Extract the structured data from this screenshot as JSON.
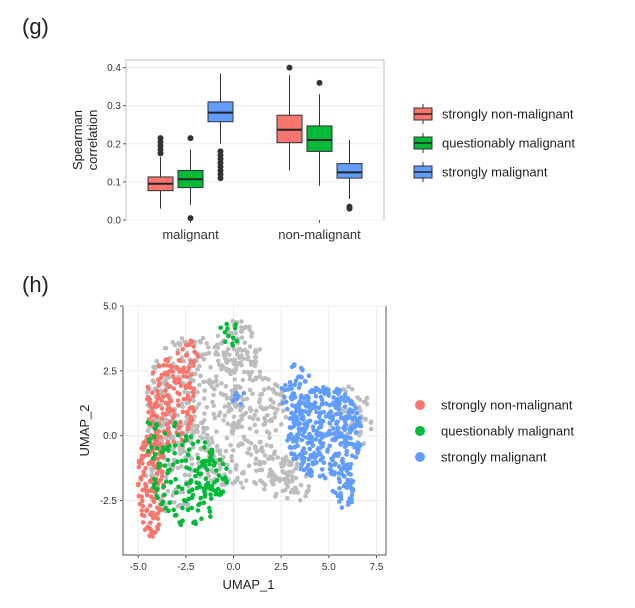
{
  "panels": {
    "g_label": "(g)",
    "h_label": "(h)"
  },
  "chart_data": [
    {
      "type": "box",
      "ylabel_line1": "Spearman",
      "ylabel_line2": "correlation",
      "ylim": [
        0,
        0.42
      ],
      "yticks": [
        0.0,
        0.1,
        0.2,
        0.3,
        0.4
      ],
      "ytick_labels": [
        "0.0",
        "0.1",
        "0.2",
        "0.3",
        "0.4"
      ],
      "categories": [
        "malignant",
        "non-malignant"
      ],
      "grid": true,
      "legend_position": "right",
      "series": [
        {
          "name": "strongly non-malignant",
          "color": "#f8766d",
          "boxes": [
            {
              "min": 0.03,
              "q1": 0.077,
              "median": 0.095,
              "q3": 0.113,
              "max": 0.165,
              "outliers": [
                0.175,
                0.185,
                0.195,
                0.205,
                0.215
              ]
            },
            {
              "min": 0.13,
              "q1": 0.203,
              "median": 0.237,
              "q3": 0.275,
              "max": 0.38,
              "outliers": [
                0.4
              ]
            }
          ]
        },
        {
          "name": "questionably malignant",
          "color": "#00ba38",
          "boxes": [
            {
              "min": 0.04,
              "q1": 0.085,
              "median": 0.107,
              "q3": 0.13,
              "max": 0.185,
              "outliers": [
                0.215,
                0.005
              ]
            },
            {
              "min": 0.09,
              "q1": 0.18,
              "median": 0.21,
              "q3": 0.247,
              "max": 0.33,
              "outliers": [
                0.36
              ]
            }
          ]
        },
        {
          "name": "strongly malignant",
          "color": "#619cff",
          "boxes": [
            {
              "min": 0.2,
              "q1": 0.258,
              "median": 0.282,
              "q3": 0.31,
              "max": 0.385,
              "outliers": [
                0.11,
                0.12,
                0.13,
                0.14,
                0.15,
                0.16,
                0.17,
                0.18
              ]
            },
            {
              "min": 0.055,
              "q1": 0.11,
              "median": 0.125,
              "q3": 0.148,
              "max": 0.21,
              "outliers": [
                0.03,
                0.035
              ]
            }
          ]
        }
      ]
    },
    {
      "type": "scatter",
      "xlabel": "UMAP_1",
      "ylabel": "UMAP_2",
      "xlim": [
        -5.8,
        8.0
      ],
      "ylim": [
        -4.6,
        5.0
      ],
      "xticks": [
        -5.0,
        -2.5,
        0.0,
        2.5,
        5.0,
        7.5
      ],
      "xtick_labels": [
        "-5.0",
        "-2.5",
        "0.0",
        "2.5",
        "5.0",
        "7.5"
      ],
      "yticks": [
        -2.5,
        0.0,
        2.5,
        5.0
      ],
      "ytick_labels": [
        "-2.5",
        "0.0",
        "2.5",
        "5.0"
      ],
      "grid": true,
      "legend_position": "right",
      "series": [
        {
          "name": "",
          "color": "#bdbdbd",
          "regions": [
            {
              "cx": -2.0,
              "cy": 1.5,
              "rx": 2.6,
              "ry": 2.4,
              "n": 260
            },
            {
              "cx": 0.2,
              "cy": 3.4,
              "rx": 1.2,
              "ry": 1.1,
              "n": 90
            },
            {
              "cx": 1.2,
              "cy": 1.0,
              "rx": 1.6,
              "ry": 1.6,
              "n": 110
            },
            {
              "cx": 0.8,
              "cy": -1.2,
              "rx": 2.4,
              "ry": 1.0,
              "n": 120
            },
            {
              "cx": 3.0,
              "cy": -1.7,
              "rx": 1.2,
              "ry": 0.9,
              "n": 50
            },
            {
              "cx": 6.2,
              "cy": 0.7,
              "rx": 1.2,
              "ry": 1.2,
              "n": 60
            },
            {
              "cx": -3.2,
              "cy": -1.0,
              "rx": 1.8,
              "ry": 2.0,
              "n": 110
            }
          ]
        },
        {
          "name": "strongly non-malignant",
          "color": "#f8766d",
          "regions": [
            {
              "cx": -3.3,
              "cy": 1.3,
              "rx": 1.3,
              "ry": 1.7,
              "n": 150
            },
            {
              "cx": -4.3,
              "cy": -1.7,
              "rx": 0.7,
              "ry": 2.2,
              "n": 150
            },
            {
              "cx": -2.4,
              "cy": 3.0,
              "rx": 0.6,
              "ry": 0.7,
              "n": 25
            }
          ]
        },
        {
          "name": "questionably malignant",
          "color": "#00ba38",
          "regions": [
            {
              "cx": -2.4,
              "cy": -1.8,
              "rx": 1.8,
              "ry": 1.8,
              "n": 110
            },
            {
              "cx": -3.8,
              "cy": -0.2,
              "rx": 1.0,
              "ry": 1.3,
              "n": 30
            },
            {
              "cx": -0.2,
              "cy": 4.0,
              "rx": 0.5,
              "ry": 0.6,
              "n": 12
            },
            {
              "cx": -1.2,
              "cy": -1.5,
              "rx": 0.9,
              "ry": 1.0,
              "n": 30
            }
          ]
        },
        {
          "name": "strongly malignant",
          "color": "#619cff",
          "regions": [
            {
              "cx": 4.8,
              "cy": 0.1,
              "rx": 2.0,
              "ry": 1.8,
              "n": 360
            },
            {
              "cx": 3.3,
              "cy": 1.7,
              "rx": 0.8,
              "ry": 1.1,
              "n": 50
            },
            {
              "cx": 5.8,
              "cy": -2.0,
              "rx": 0.6,
              "ry": 0.8,
              "n": 40
            },
            {
              "cx": 0.3,
              "cy": 1.4,
              "rx": 0.35,
              "ry": 0.35,
              "n": 8
            }
          ]
        }
      ]
    }
  ]
}
